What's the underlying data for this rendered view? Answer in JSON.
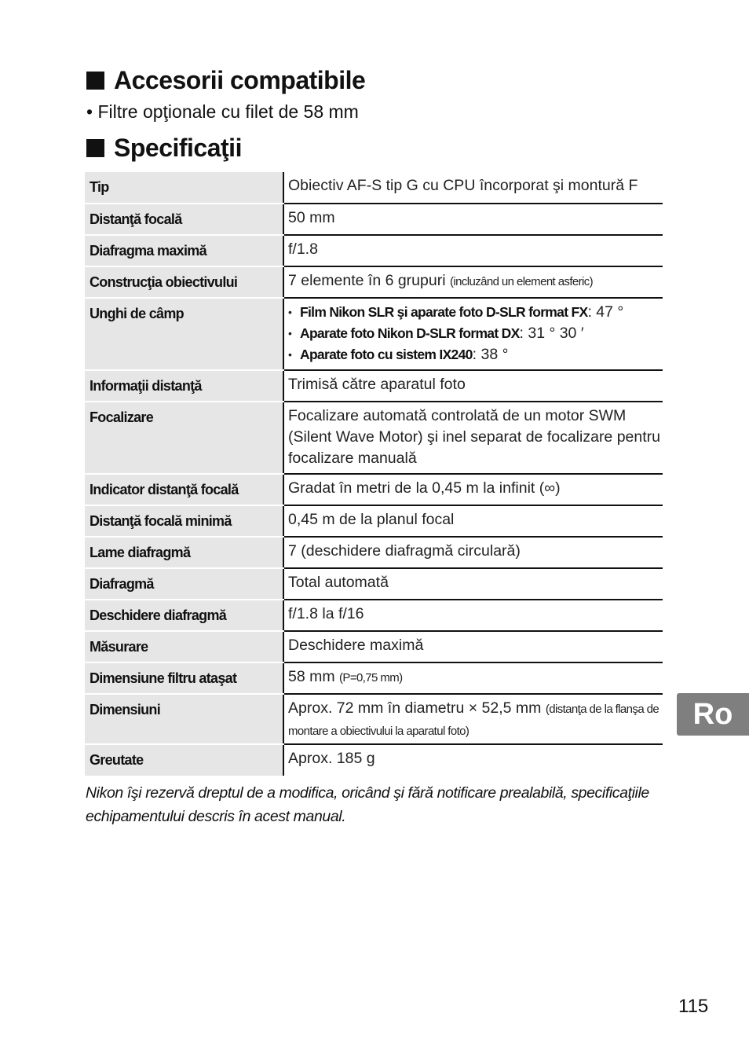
{
  "sections": {
    "accessories_title": "Accesorii compatibile",
    "accessories_item": "Filtre opţionale cu filet de 58 mm",
    "specs_title": "Specificaţii"
  },
  "specs": [
    {
      "label": "Tip",
      "value": "Obiectiv AF-S tip G cu CPU încorporat şi montură F"
    },
    {
      "label": "Distanţă focală",
      "value": "50 mm"
    },
    {
      "label": "Diafragma maximă",
      "value": "f/1.8"
    },
    {
      "label": "Construcţia obiectivului",
      "value": "7 elemente în 6 grupuri ",
      "note": "(incluzând un element asferic)"
    },
    {
      "label": "Unghi de câmp",
      "items": [
        {
          "bold": "Film Nikon SLR şi aparate foto D-SLR format FX",
          "rest": ": 47 °"
        },
        {
          "bold": "Aparate foto Nikon D-SLR format DX",
          "rest": ": 31 ° 30 ′"
        },
        {
          "bold": "Aparate foto cu sistem IX240",
          "rest": ": 38 °"
        }
      ]
    },
    {
      "label": "Informaţii distanţă",
      "value": "Trimisă către aparatul foto"
    },
    {
      "label": "Focalizare",
      "value": "Focalizare automată controlată de un motor SWM (Silent Wave Motor) şi inel separat de focalizare pentru focalizare manuală"
    },
    {
      "label": "Indicator distanţă focală",
      "value": "Gradat în metri de la 0,45 m la infinit (∞)"
    },
    {
      "label": "Distanţă focală minimă",
      "value": "0,45 m de la planul focal"
    },
    {
      "label": "Lame diafragmă",
      "value": "7 (deschidere diafragmă circulară)"
    },
    {
      "label": "Diafragmă",
      "value": "Total automată"
    },
    {
      "label": "Deschidere diafragmă",
      "value": "f/1.8 la f/16"
    },
    {
      "label": "Măsurare",
      "value": "Deschidere maximă"
    },
    {
      "label": "Dimensiune filtru ataşat",
      "value": "58 mm ",
      "note": "(P=0,75 mm)"
    },
    {
      "label": "Dimensiuni",
      "value": "Aprox. 72 mm în diametru × 52,5 mm ",
      "note": "(distanţa de la flanşa de montare a obiectivului la aparatul foto)"
    },
    {
      "label": "Greutate",
      "value": "Aprox. 185 g"
    }
  ],
  "disclaimer": "Nikon îşi rezervă dreptul de a modifica, oricând şi fără notificare prealabilă, specificaţiile echipamentului descris în acest manual.",
  "language_tab": "Ro",
  "page_number": "115"
}
